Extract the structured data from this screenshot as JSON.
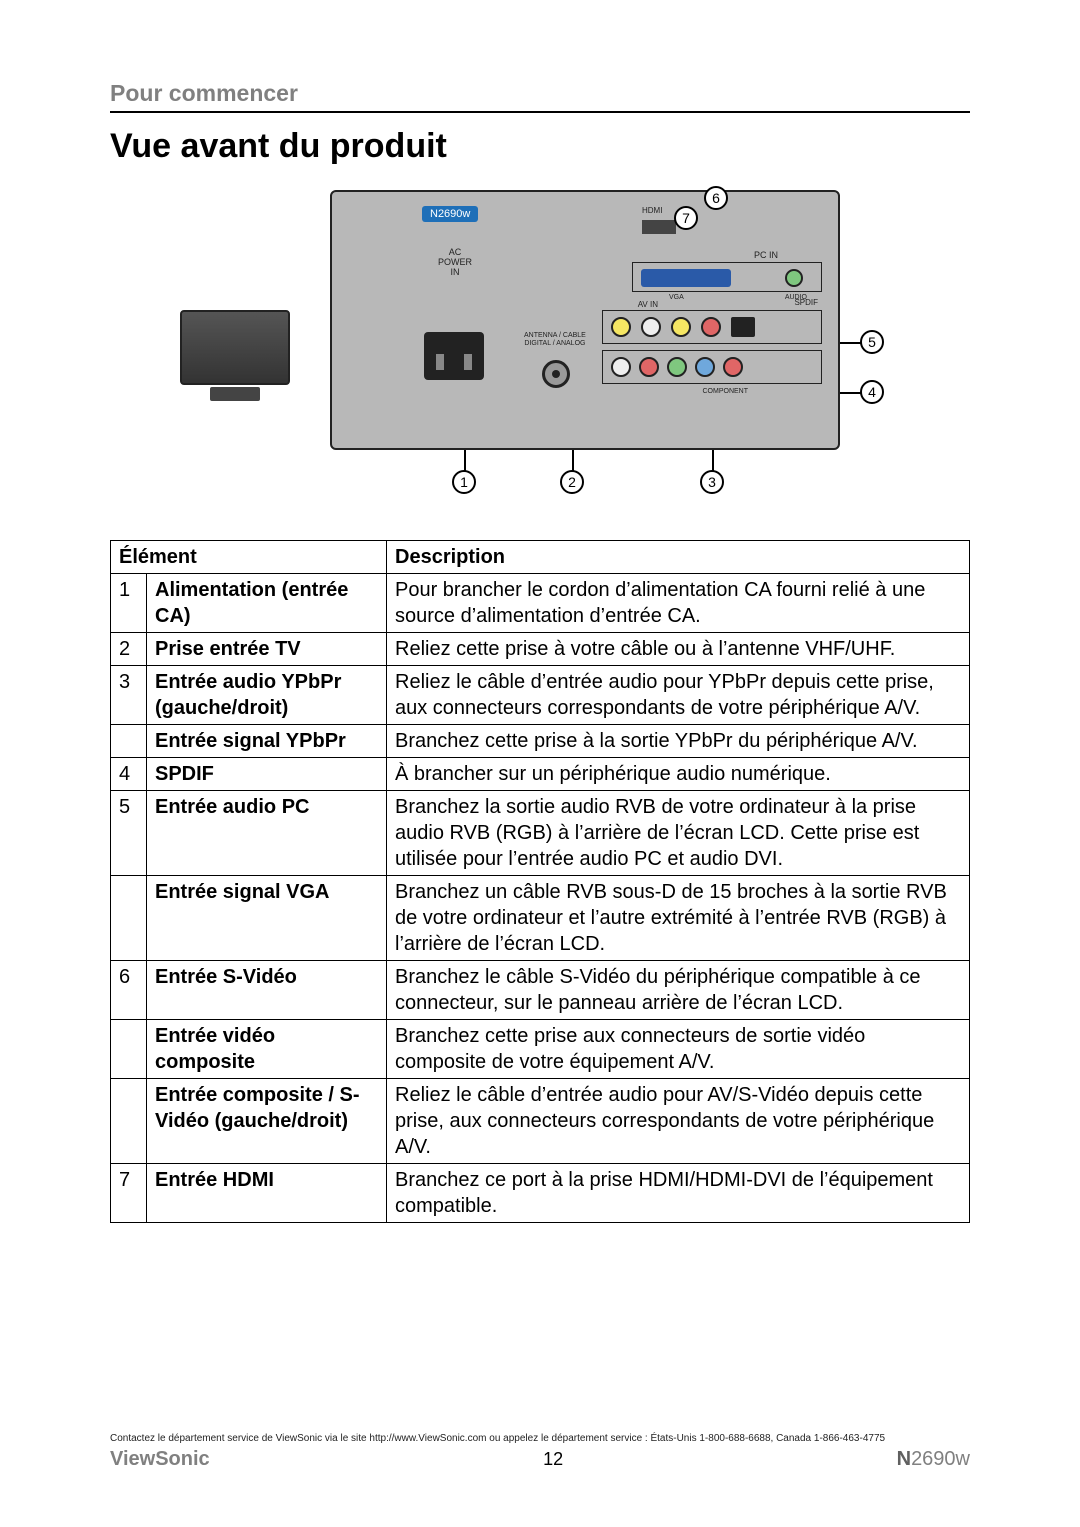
{
  "header": {
    "section": "Pour commencer",
    "title": "Vue avant du produit"
  },
  "diagram": {
    "model": "N2690w",
    "ac_label": "AC\nPOWER\nIN",
    "antenna_label": "ANTENNA / CABLE\nDIGITAL / ANALOG",
    "pcin_label": "PC IN",
    "vga_label": "VGA",
    "audio_label": "AUDIO",
    "avin_label": "AV IN",
    "spdif_label": "SPDIF",
    "component_label": "COMPONENT",
    "hdmi_label": "HDMI",
    "callouts": {
      "1": "1",
      "2": "2",
      "3": "3",
      "4": "4",
      "5": "5",
      "6": "6",
      "7": "7"
    },
    "colors": {
      "panel_bg": "#b8b8b8",
      "badge_bg": "#1e6fb8",
      "vga_bg": "#2a5aa8",
      "rca_yellow": "#f5e663",
      "rca_white": "#eeeeee",
      "rca_red": "#e06666",
      "rca_green": "#7fc77f",
      "rca_blue": "#6fa8dc"
    }
  },
  "table": {
    "headers": {
      "element": "Élément",
      "description": "Description"
    },
    "rows": [
      {
        "num": "1",
        "element": "Alimentation (entrée CA)",
        "desc": "Pour brancher le cordon d’alimentation CA fourni relié à une source d’alimentation d’entrée CA."
      },
      {
        "num": "2",
        "element": "Prise entrée TV",
        "desc": "Reliez cette prise à votre câble ou à l’antenne VHF/UHF."
      },
      {
        "num": "3",
        "element": "Entrée audio YPbPr (gauche/droit)",
        "desc": "Reliez le câble d’entrée audio pour YPbPr depuis cette prise, aux connecteurs correspondants de votre périphérique A/V."
      },
      {
        "num": "",
        "element": "Entrée signal YPbPr",
        "desc": "Branchez cette prise à la sortie YPbPr du périphérique A/V."
      },
      {
        "num": "4",
        "element": "SPDIF",
        "desc": "À brancher sur un périphérique audio numérique."
      },
      {
        "num": "5",
        "element": "Entrée audio PC",
        "desc": "Branchez la sortie audio RVB de votre ordinateur à la prise audio RVB (RGB) à l’arrière de l’écran LCD. Cette prise est utilisée pour l’entrée audio PC et audio DVI."
      },
      {
        "num": "",
        "element": "Entrée signal VGA",
        "desc": "Branchez un câble RVB sous-D de 15 broches à la sortie RVB de votre ordinateur et l’autre extrémité à l’entrée RVB (RGB) à l’arrière de l’écran LCD."
      },
      {
        "num": "6",
        "element": "Entrée S-Vidéo",
        "desc": "Branchez le câble S-Vidéo du périphérique compatible à ce connecteur, sur le panneau arrière de l’écran LCD."
      },
      {
        "num": "",
        "element": "Entrée vidéo composite",
        "desc": "Branchez cette prise aux connecteurs de sortie vidéo composite de votre équipement A/V."
      },
      {
        "num": "",
        "element": "Entrée composite / S-Vidéo (gauche/droit)",
        "desc": "Reliez le câble d’entrée audio pour AV/S-Vidéo depuis cette prise, aux connecteurs correspondants de votre périphérique A/V."
      },
      {
        "num": "7",
        "element": "Entrée HDMI",
        "desc": "Branchez ce port à la prise HDMI/HDMI-DVI de l’équipement compatible."
      }
    ]
  },
  "footer": {
    "fine": "Contactez le département service de ViewSonic via le site http://www.ViewSonic.com ou appelez le département service : États-Unis 1-800-688-6688, Canada 1-866-463-4775",
    "brand": "ViewSonic",
    "page": "12",
    "model_prefix": "N",
    "model_rest": "2690w"
  }
}
